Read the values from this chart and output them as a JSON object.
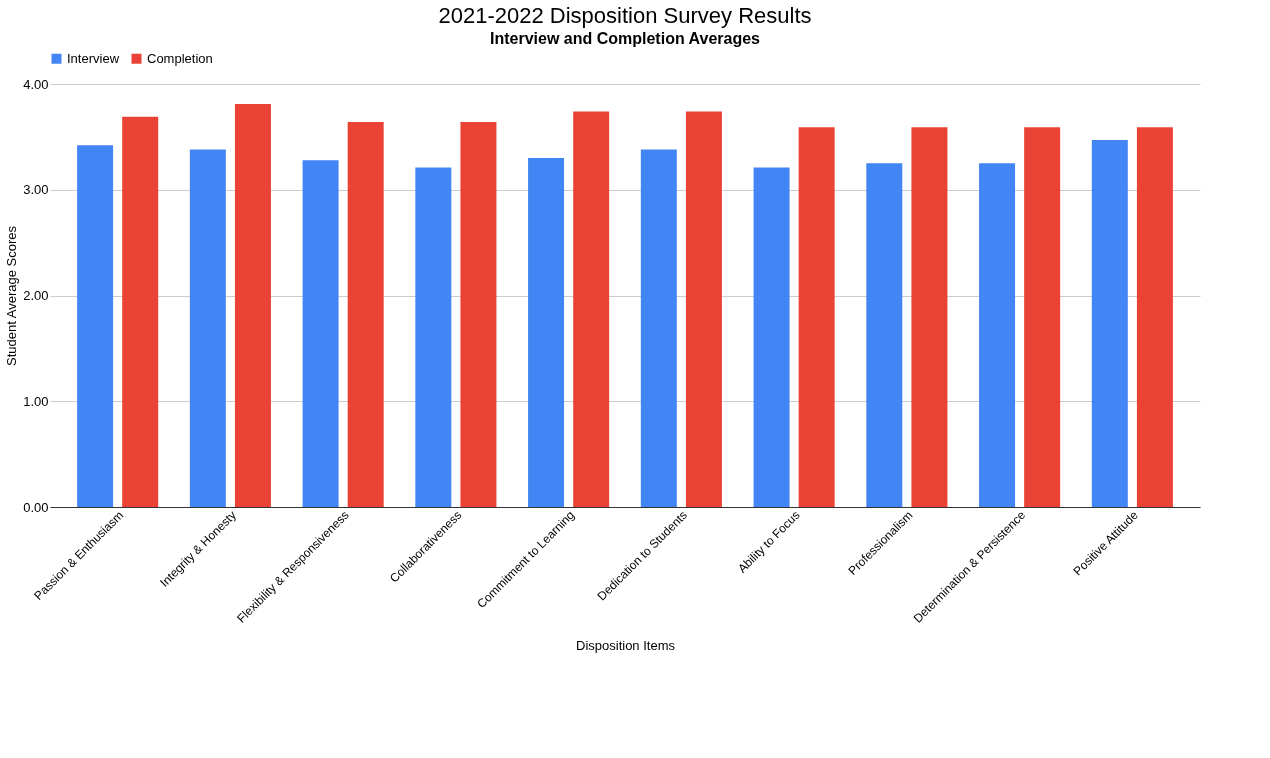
{
  "chart_data": {
    "type": "bar",
    "title": "2021-2022 Disposition Survey Results",
    "subtitle": "Interview and Completion Averages",
    "xlabel": "Disposition Items",
    "ylabel": "Student Average Scores",
    "categories": [
      "Passion & Enthusiasm",
      "Integrity & Honesty",
      "Flexibility & Responsiveness",
      "Collaborativeness",
      "Commitment to Learning",
      "Dedication to Students",
      "Ability to Focus",
      "Professionalism",
      "Determination & Persistence",
      "Positive Attitude"
    ],
    "series": [
      {
        "name": "Interview",
        "color": "#4285f4",
        "values": [
          3.42,
          3.38,
          3.28,
          3.21,
          3.3,
          3.38,
          3.21,
          3.25,
          3.25,
          3.47
        ]
      },
      {
        "name": "Completion",
        "color": "#ea4335",
        "values": [
          3.69,
          3.81,
          3.64,
          3.64,
          3.74,
          3.74,
          3.59,
          3.59,
          3.59,
          3.59
        ]
      }
    ],
    "ylim": [
      0,
      4
    ],
    "yticks": [
      {
        "value": 0,
        "label": "0.00"
      },
      {
        "value": 1,
        "label": "1.00"
      },
      {
        "value": 2,
        "label": "2.00"
      },
      {
        "value": 3,
        "label": "3.00"
      },
      {
        "value": 4,
        "label": "4.00"
      }
    ],
    "grid": "y",
    "legend": "top"
  }
}
